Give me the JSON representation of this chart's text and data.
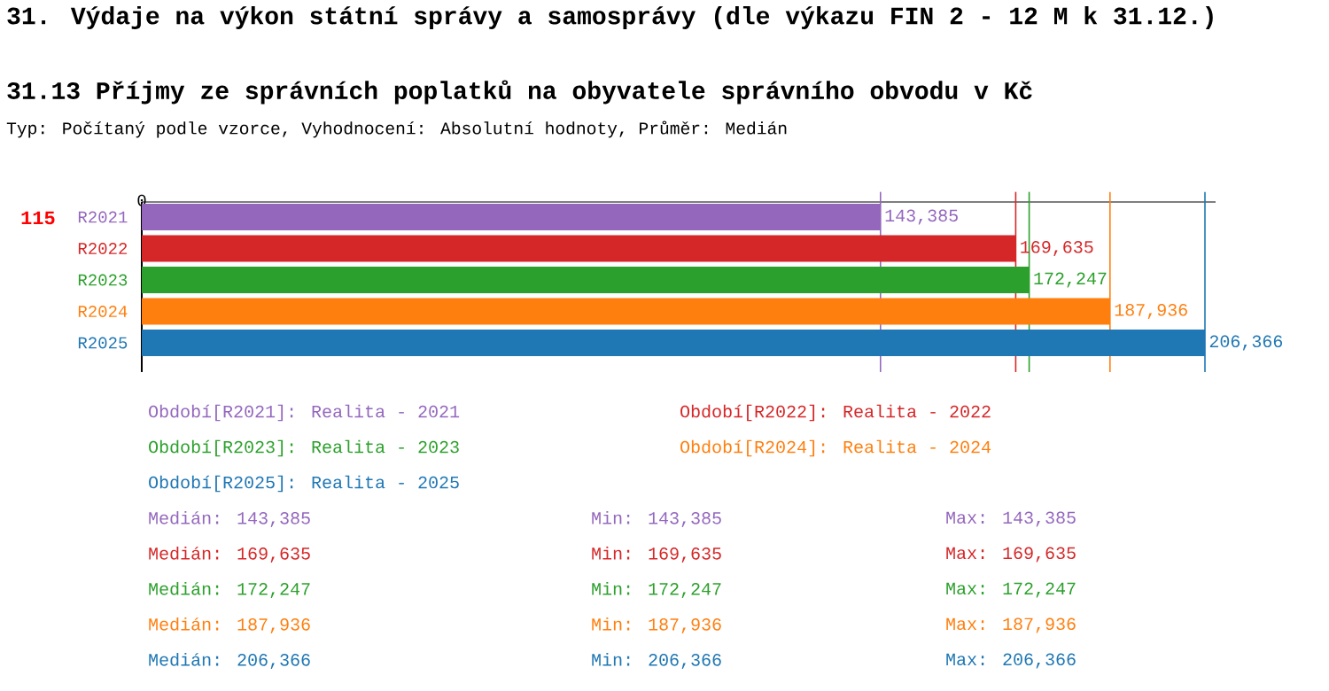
{
  "chart_data": {
    "type": "bar",
    "orientation": "horizontal",
    "title": "31. Výdaje na výkon státní správy a samosprávy (dle výkazu FIN 2 - 12 M k 31.12.)",
    "subtitle": "31.13 Příjmy ze správních poplatků na obyvatele správního obvodu v Kč",
    "categories": [
      "R2021",
      "R2022",
      "R2023",
      "R2024",
      "R2025"
    ],
    "series": [
      {
        "name": "Období[R2021]: Realita - 2021",
        "color": "#9467bd",
        "values": [
          143385,
          null,
          null,
          null,
          null
        ],
        "value_labels": [
          "143,385",
          null,
          null,
          null,
          null
        ]
      },
      {
        "name": "Období[R2022]: Realita - 2022",
        "color": "#d62728",
        "values": [
          null,
          169635,
          null,
          null,
          null
        ],
        "value_labels": [
          null,
          "169,635",
          null,
          null,
          null
        ]
      },
      {
        "name": "Období[R2023]: Realita - 2023",
        "color": "#2ca02c",
        "values": [
          null,
          null,
          172247,
          null,
          null
        ],
        "value_labels": [
          null,
          null,
          "172,247",
          null,
          null
        ]
      },
      {
        "name": "Období[R2024]: Realita - 2024",
        "color": "#ff7f0e",
        "values": [
          null,
          null,
          null,
          187936,
          null
        ],
        "value_labels": [
          null,
          null,
          null,
          "187,936",
          null
        ]
      },
      {
        "name": "Období[R2025]: Realita - 2025",
        "color": "#1f77b4",
        "values": [
          null,
          null,
          null,
          null,
          206366
        ],
        "value_labels": [
          null,
          null,
          null,
          null,
          "206,366"
        ]
      }
    ],
    "ref_lines": [
      {
        "axis": "x",
        "value": 143385,
        "color": "#9467bd"
      },
      {
        "axis": "x",
        "value": 169635,
        "color": "#d62728"
      },
      {
        "axis": "x",
        "value": 172247,
        "color": "#2ca02c"
      },
      {
        "axis": "x",
        "value": 187936,
        "color": "#ff7f0e"
      },
      {
        "axis": "x",
        "value": 206366,
        "color": "#1f77b4"
      }
    ],
    "legend": "bottom",
    "annotations": [
      "Typ: Počítaný podle vzorce, Vyhodnocení: Absolutní hodnoty, Průměr: Medián",
      "115",
      "Medián: 143,385",
      "Min: 143,385",
      "Max: 143,385",
      "Medián: 169,635",
      "Min: 169,635",
      "Max: 169,635",
      "Medián: 172,247",
      "Min: 172,247",
      "Max: 172,247",
      "Medián: 187,936",
      "Min: 187,936",
      "Max: 187,936",
      "Medián: 206,366",
      "Min: 206,366",
      "Max: 206,366",
      {
        "text": "0",
        "x": 0
      }
    ]
  }
}
